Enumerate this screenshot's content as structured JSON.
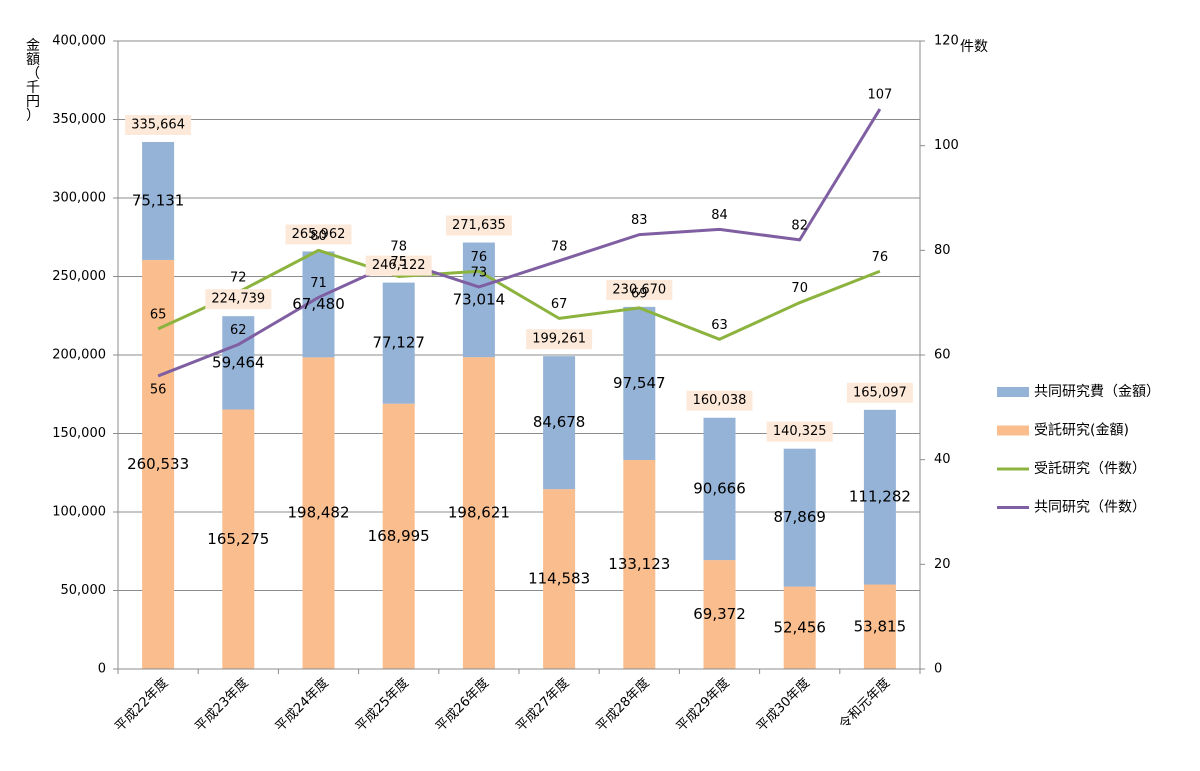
{
  "chart_data": {
    "type": "bar",
    "stacked": true,
    "categories": [
      "平成22年度",
      "平成23年度",
      "平成24年度",
      "平成25年度",
      "平成26年度",
      "平成27年度",
      "平成28年度",
      "平成29年度",
      "平成30年度",
      "令和元年度"
    ],
    "left_axis": {
      "label": "金額（千円）",
      "ylim": [
        0,
        400000
      ],
      "ticks": [
        "0",
        "50,000",
        "100,000",
        "150,000",
        "200,000",
        "250,000",
        "300,000",
        "350,000",
        "400,000"
      ]
    },
    "right_axis": {
      "label": "件数",
      "ylim": [
        0,
        120
      ],
      "ticks": [
        "0",
        "20",
        "40",
        "60",
        "80",
        "100",
        "120"
      ]
    },
    "grid": true,
    "legend_position": "right",
    "series": [
      {
        "name": "受託研究(金額)",
        "type": "bar",
        "axis": "left",
        "color": "#F9BD8E",
        "values": [
          260533,
          165275,
          198482,
          168995,
          198621,
          114583,
          133123,
          69372,
          52456,
          53815
        ],
        "labels": [
          "260,533",
          "165,275",
          "198,482",
          "168,995",
          "198,621",
          "114,583",
          "133,123",
          "69,372",
          "52,456",
          "53,815"
        ]
      },
      {
        "name": "共同研究費（金額）",
        "type": "bar",
        "axis": "left",
        "color": "#95B3D7",
        "values": [
          75131,
          59464,
          67480,
          77127,
          73014,
          84678,
          97547,
          90666,
          87869,
          111282
        ],
        "labels": [
          "75,131",
          "59,464",
          "67,480",
          "77,127",
          "73,014",
          "84,678",
          "97,547",
          "90,666",
          "87,869",
          "111,282"
        ]
      },
      {
        "name": "受託研究（件数）",
        "type": "line",
        "axis": "right",
        "color": "#8DB33F",
        "values": [
          65,
          72,
          80,
          75,
          76,
          67,
          69,
          63,
          70,
          76
        ]
      },
      {
        "name": "共同研究（件数）",
        "type": "line",
        "axis": "right",
        "color": "#7F5FA2",
        "values": [
          56,
          62,
          71,
          78,
          73,
          78,
          83,
          84,
          82,
          107
        ]
      }
    ],
    "totals": {
      "values": [
        335664,
        224739,
        265962,
        246122,
        271635,
        199261,
        230670,
        160038,
        140325,
        165097
      ],
      "labels": [
        "335,664",
        "224,739",
        "265,962",
        "246,122",
        "271,635",
        "199,261",
        "230,670",
        "160,038",
        "140,325",
        "165,097"
      ],
      "box_color": "#FDE9D9"
    },
    "legend": [
      "共同研究費（金額）",
      "受託研究(金額)",
      "受託研究（件数）",
      "共同研究（件数）"
    ]
  }
}
